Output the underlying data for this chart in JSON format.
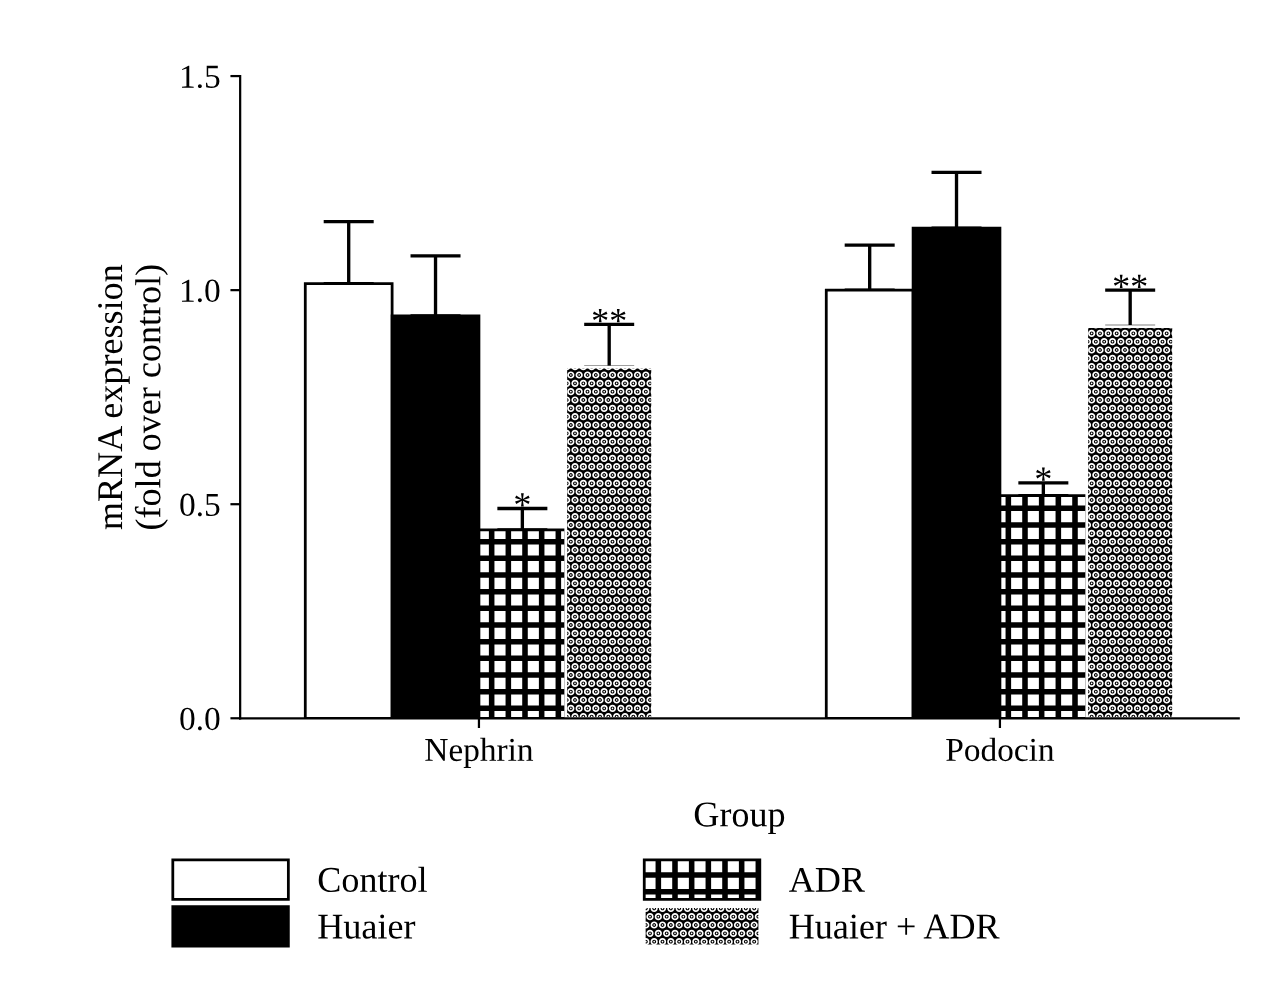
{
  "chart_data": {
    "type": "bar",
    "xlabel": "Group",
    "ylabel": "mRNA expression\n(fold over control)",
    "categories": [
      "Nephrin",
      "Podocin"
    ],
    "series": [
      {
        "name": "Control",
        "color": "#ffffff",
        "values": [
          1.015,
          1.0
        ],
        "errors": [
          0.145,
          0.105
        ]
      },
      {
        "name": "Huaier",
        "color": "#000000",
        "values": [
          0.94,
          1.145
        ],
        "errors": [
          0.14,
          0.13
        ]
      },
      {
        "name": "ADR",
        "color": "#000000",
        "values": [
          0.44,
          0.52
        ],
        "errors": [
          0.05,
          0.03
        ]
      },
      {
        "name": "Huaier + ADR",
        "color": "#ffffff",
        "values": [
          0.82,
          0.915
        ],
        "errors": [
          0.1,
          0.085
        ]
      }
    ],
    "annotations": [
      {
        "text": "*",
        "y": 0.49
      },
      {
        "text": "**",
        "y": 0.92
      },
      {
        "text": "*",
        "y": 0.55
      },
      {
        "text": "**",
        "y": 1.0
      }
    ],
    "ylim": [
      0,
      1.5
    ],
    "yticks": [
      {
        "value": 0,
        "label": "0.0"
      },
      0.5,
      {
        "value": 1,
        "label": "1.0"
      },
      1.5
    ],
    "grid": false,
    "legend": "bottom"
  }
}
